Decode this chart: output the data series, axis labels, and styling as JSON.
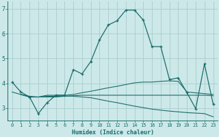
{
  "xlabel": "Humidex (Indice chaleur)",
  "background_color": "#cce8e8",
  "grid_color": "#aed0d0",
  "line_color": "#1a6b6b",
  "xlim": [
    -0.5,
    23.5
  ],
  "ylim": [
    2.5,
    7.3
  ],
  "yticks": [
    3,
    4,
    5,
    6,
    7
  ],
  "xticks": [
    0,
    1,
    2,
    3,
    4,
    5,
    6,
    7,
    8,
    9,
    10,
    11,
    12,
    13,
    14,
    15,
    16,
    17,
    18,
    19,
    20,
    21,
    22,
    23
  ],
  "series": [
    {
      "x": [
        0,
        1,
        2,
        3,
        4,
        5,
        6,
        7,
        8,
        9,
        10,
        11,
        12,
        13,
        14,
        15,
        16,
        17,
        18,
        19,
        20,
        21,
        22,
        23
      ],
      "y": [
        4.05,
        3.65,
        3.45,
        2.78,
        3.22,
        3.52,
        3.52,
        4.55,
        4.38,
        4.88,
        5.75,
        6.35,
        6.52,
        6.95,
        6.95,
        6.55,
        5.48,
        5.48,
        4.15,
        4.22,
        3.62,
        2.98,
        4.78,
        3.15
      ],
      "marker": true
    },
    {
      "x": [
        1,
        2,
        3,
        4,
        5,
        6,
        7,
        8,
        9,
        10,
        11,
        12,
        13,
        14,
        15,
        16,
        17,
        18,
        19,
        20,
        23
      ],
      "y": [
        3.55,
        3.45,
        3.45,
        3.52,
        3.52,
        3.52,
        3.55,
        3.62,
        3.68,
        3.75,
        3.82,
        3.88,
        3.95,
        4.02,
        4.05,
        4.05,
        4.08,
        4.1,
        4.08,
        3.65,
        3.55
      ],
      "marker": false
    },
    {
      "x": [
        0,
        1,
        2,
        3,
        4,
        5,
        6,
        7,
        8,
        9,
        10,
        11,
        12,
        13,
        14,
        15,
        16,
        17,
        18,
        19,
        20,
        21,
        22,
        23
      ],
      "y": [
        3.65,
        3.55,
        3.48,
        3.45,
        3.48,
        3.48,
        3.48,
        3.48,
        3.45,
        3.42,
        3.35,
        3.28,
        3.22,
        3.15,
        3.08,
        3.02,
        2.96,
        2.92,
        2.88,
        2.85,
        2.82,
        2.8,
        2.78,
        2.65
      ],
      "marker": false
    },
    {
      "x": [
        1,
        2,
        3,
        4,
        5,
        6,
        7,
        8,
        9,
        10,
        11,
        12,
        13,
        14,
        15,
        16,
        17,
        18,
        19,
        20,
        21,
        22,
        23
      ],
      "y": [
        3.55,
        3.45,
        3.45,
        3.45,
        3.45,
        3.48,
        3.5,
        3.52,
        3.52,
        3.52,
        3.52,
        3.52,
        3.52,
        3.52,
        3.52,
        3.52,
        3.52,
        3.52,
        3.52,
        3.52,
        3.52,
        3.52,
        3.5
      ],
      "marker": false
    }
  ]
}
